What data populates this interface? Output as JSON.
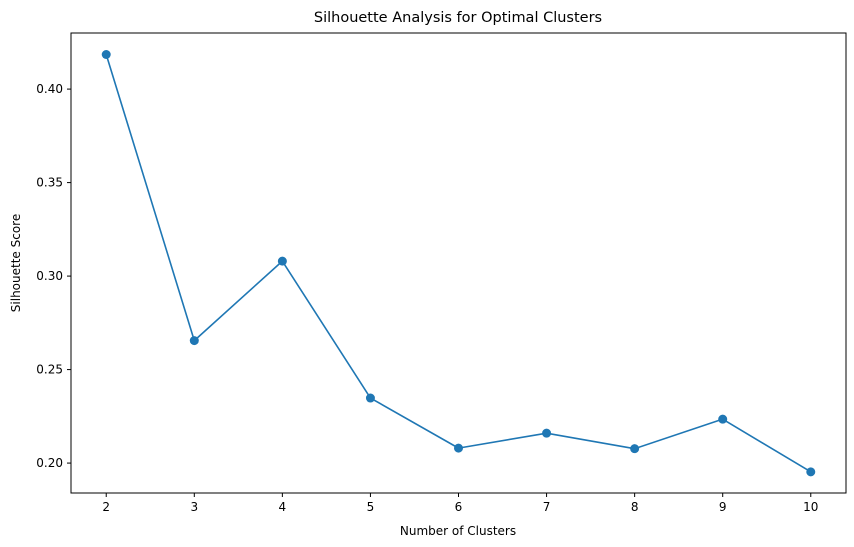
{
  "chart_data": {
    "type": "line",
    "title": "Silhouette Analysis for Optimal Clusters",
    "xlabel": "Number of Clusters",
    "ylabel": "Silhouette Score",
    "x": [
      2,
      3,
      4,
      5,
      6,
      7,
      8,
      9,
      10
    ],
    "series": [
      {
        "values": [
          0.4185,
          0.2655,
          0.308,
          0.2348,
          0.208,
          0.216,
          0.2077,
          0.2235,
          0.1953
        ],
        "color": "#1f77b4",
        "marker": "circle"
      }
    ],
    "xlim": [
      1.6,
      10.4
    ],
    "ylim": [
      0.184,
      0.43
    ],
    "xticks": [
      2,
      3,
      4,
      5,
      6,
      7,
      8,
      9,
      10
    ],
    "yticks": [
      0.2,
      0.25,
      0.3,
      0.35,
      0.4
    ],
    "ytick_labels": [
      "0.20",
      "0.25",
      "0.30",
      "0.35",
      "0.40"
    ],
    "grid": false,
    "legend": "none"
  }
}
